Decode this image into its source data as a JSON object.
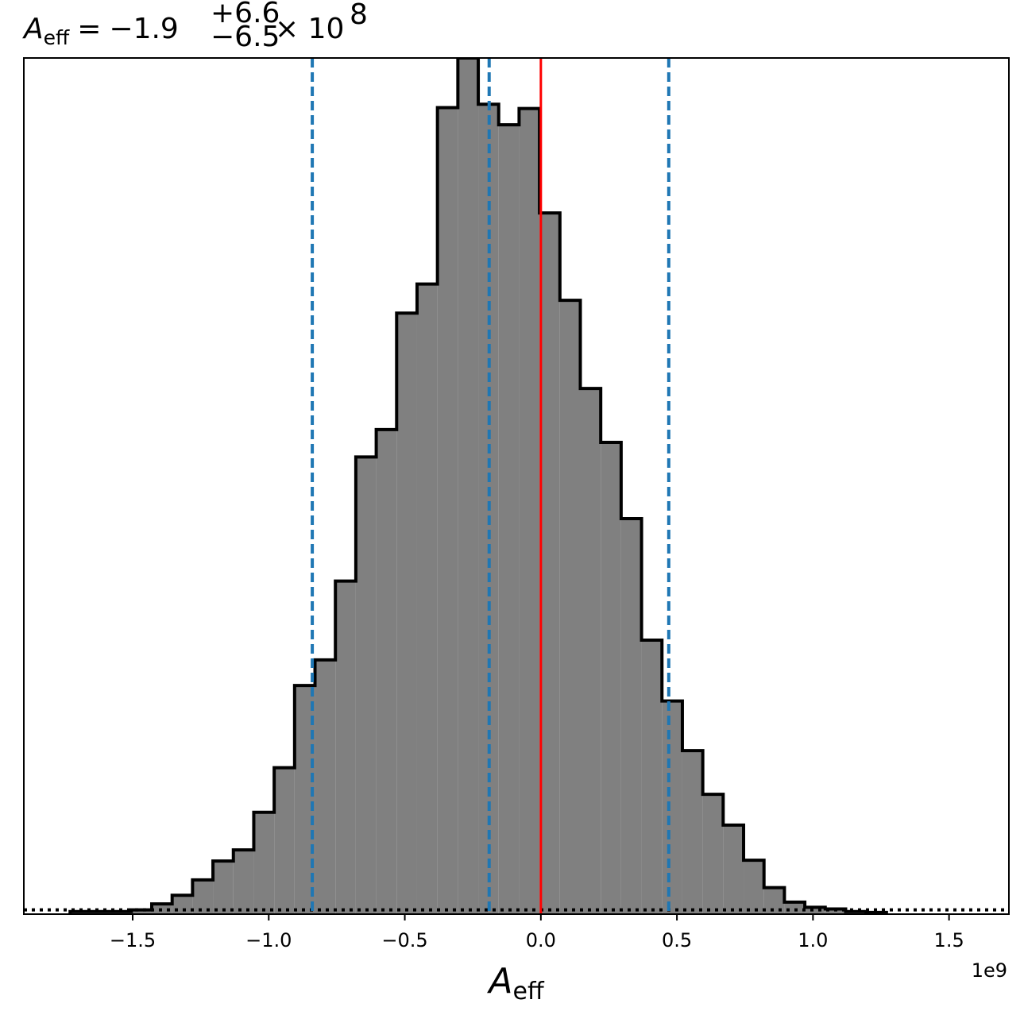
{
  "chart_data": {
    "type": "histogram",
    "title": {
      "symbol": "A",
      "subscript": "eff",
      "equals": "=",
      "median": "−1.9",
      "upper": "+6.6",
      "lower": "−6.5",
      "times": "× 10",
      "exponent": "8"
    },
    "xlabel": {
      "symbol": "A",
      "subscript": "eff"
    },
    "x_offset_label": "1e9",
    "x_scale": 1000000000,
    "xlim": [
      -1.9,
      1.72
    ],
    "ylim": [
      0,
      1.0
    ],
    "y_axis_shown": false,
    "x_ticks": [
      -1.5,
      -1.0,
      -0.5,
      0.0,
      0.5,
      1.0,
      1.5
    ],
    "x_tick_labels": [
      "−1.5",
      "−1.0",
      "−0.5",
      "0.0",
      "0.5",
      "1.0",
      "1.5"
    ],
    "bin_edges": [
      -1.73,
      -1.655,
      -1.58,
      -1.505,
      -1.43,
      -1.355,
      -1.28,
      -1.205,
      -1.13,
      -1.055,
      -0.98,
      -0.905,
      -0.83,
      -0.755,
      -0.68,
      -0.605,
      -0.53,
      -0.455,
      -0.38,
      -0.305,
      -0.23,
      -0.155,
      -0.08,
      -0.005,
      0.07,
      0.145,
      0.22,
      0.295,
      0.37,
      0.445,
      0.52,
      0.595,
      0.67,
      0.745,
      0.82,
      0.895,
      0.97,
      1.045,
      1.12,
      1.195,
      1.27
    ],
    "counts": [
      0.003,
      0.003,
      0.003,
      0.005,
      0.012,
      0.022,
      0.04,
      0.062,
      0.075,
      0.119,
      0.171,
      0.267,
      0.297,
      0.389,
      0.534,
      0.566,
      0.702,
      0.736,
      0.942,
      1.0,
      0.946,
      0.922,
      0.941,
      0.819,
      0.717,
      0.614,
      0.551,
      0.462,
      0.32,
      0.249,
      0.191,
      0.14,
      0.104,
      0.063,
      0.031,
      0.014,
      0.008,
      0.006,
      0.003,
      0.002
    ],
    "hist_fill": "#808080",
    "hist_edge": "#000000",
    "quantile_lines": [
      -0.84,
      -0.19,
      0.47
    ],
    "quantile_color": "#1f77b4",
    "truth_line": 0.0,
    "truth_color": "#ff0000",
    "prior_line_y": 0.005,
    "prior_color": "#000000"
  }
}
